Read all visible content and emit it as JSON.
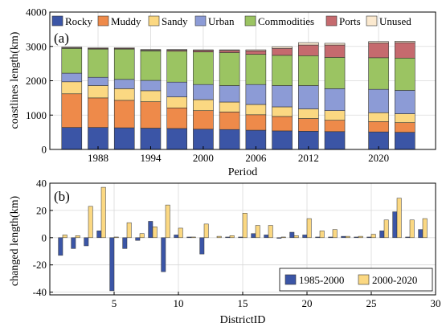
{
  "chart_data": [
    {
      "type": "bar",
      "stacked": true,
      "panel_label": "(a)",
      "xlabel": "Period",
      "ylabel": "coastlines length(km)",
      "ylim": [
        0,
        4000
      ],
      "yticks": [
        0,
        1000,
        2000,
        3000,
        4000
      ],
      "x": [
        1985,
        1988,
        1991,
        1994,
        1997,
        2000,
        2003,
        2006,
        2009,
        2012,
        2015,
        2020,
        2023
      ],
      "xticks": [
        1988,
        1994,
        2000,
        2006,
        2012,
        2020
      ],
      "grid": true,
      "legend_position": "top",
      "series": [
        {
          "name": "Rocky",
          "color": "#3b55a6",
          "values": [
            640,
            640,
            630,
            620,
            610,
            590,
            580,
            560,
            540,
            530,
            520,
            510,
            500
          ]
        },
        {
          "name": "Muddy",
          "color": "#ee8a4a",
          "values": [
            980,
            860,
            800,
            770,
            600,
            540,
            510,
            450,
            420,
            370,
            330,
            300,
            280
          ]
        },
        {
          "name": "Sandy",
          "color": "#fbd882",
          "values": [
            350,
            360,
            340,
            320,
            320,
            320,
            290,
            300,
            280,
            280,
            280,
            260,
            260
          ]
        },
        {
          "name": "Urban",
          "color": "#8c9bd6",
          "values": [
            250,
            240,
            270,
            300,
            430,
            440,
            480,
            580,
            620,
            680,
            640,
            680,
            680
          ]
        },
        {
          "name": "Commodities",
          "color": "#9bc462",
          "values": [
            720,
            820,
            880,
            860,
            900,
            950,
            960,
            880,
            880,
            870,
            910,
            920,
            940
          ]
        },
        {
          "name": "Ports",
          "color": "#c56a6e",
          "values": [
            20,
            20,
            20,
            20,
            30,
            40,
            60,
            100,
            200,
            310,
            360,
            430,
            450
          ]
        },
        {
          "name": "Unused",
          "color": "#fbe9cf",
          "values": [
            20,
            20,
            20,
            20,
            20,
            20,
            20,
            30,
            50,
            70,
            50,
            40,
            40
          ]
        }
      ]
    },
    {
      "type": "bar",
      "panel_label": "(b)",
      "xlabel": "DistrictID",
      "ylabel": "changed length(km)",
      "ylim": [
        -42,
        40
      ],
      "yticks": [
        -40,
        -20,
        0,
        20,
        40
      ],
      "xlim": [
        0,
        30
      ],
      "xticks": [
        5,
        10,
        15,
        20,
        25,
        30
      ],
      "grid": true,
      "legend_position": "bottom-right",
      "categories": [
        1,
        2,
        3,
        4,
        5,
        6,
        7,
        8,
        9,
        10,
        11,
        12,
        13,
        14,
        15,
        16,
        17,
        18,
        19,
        20,
        21,
        22,
        23,
        24,
        25,
        26,
        27,
        28,
        29
      ],
      "series": [
        {
          "name": "1985-2000",
          "color": "#3b55a6",
          "values": [
            -13,
            -8,
            -6,
            5,
            -39,
            -8,
            -2,
            12,
            -25,
            2,
            0.5,
            -12,
            0,
            0.5,
            0.5,
            3,
            2,
            -0.5,
            4,
            2,
            0.5,
            0.5,
            1,
            0.5,
            0.5,
            5,
            19,
            0.5,
            6
          ]
        },
        {
          "name": "2000-2020",
          "color": "#fbd882",
          "values": [
            2,
            1.5,
            23,
            37,
            0.5,
            11,
            3,
            8,
            24,
            7,
            0.5,
            10,
            1,
            1.5,
            18,
            9,
            9,
            0.5,
            1.5,
            14,
            5,
            6,
            1,
            1,
            2.5,
            13,
            29,
            13,
            14
          ]
        }
      ]
    }
  ]
}
